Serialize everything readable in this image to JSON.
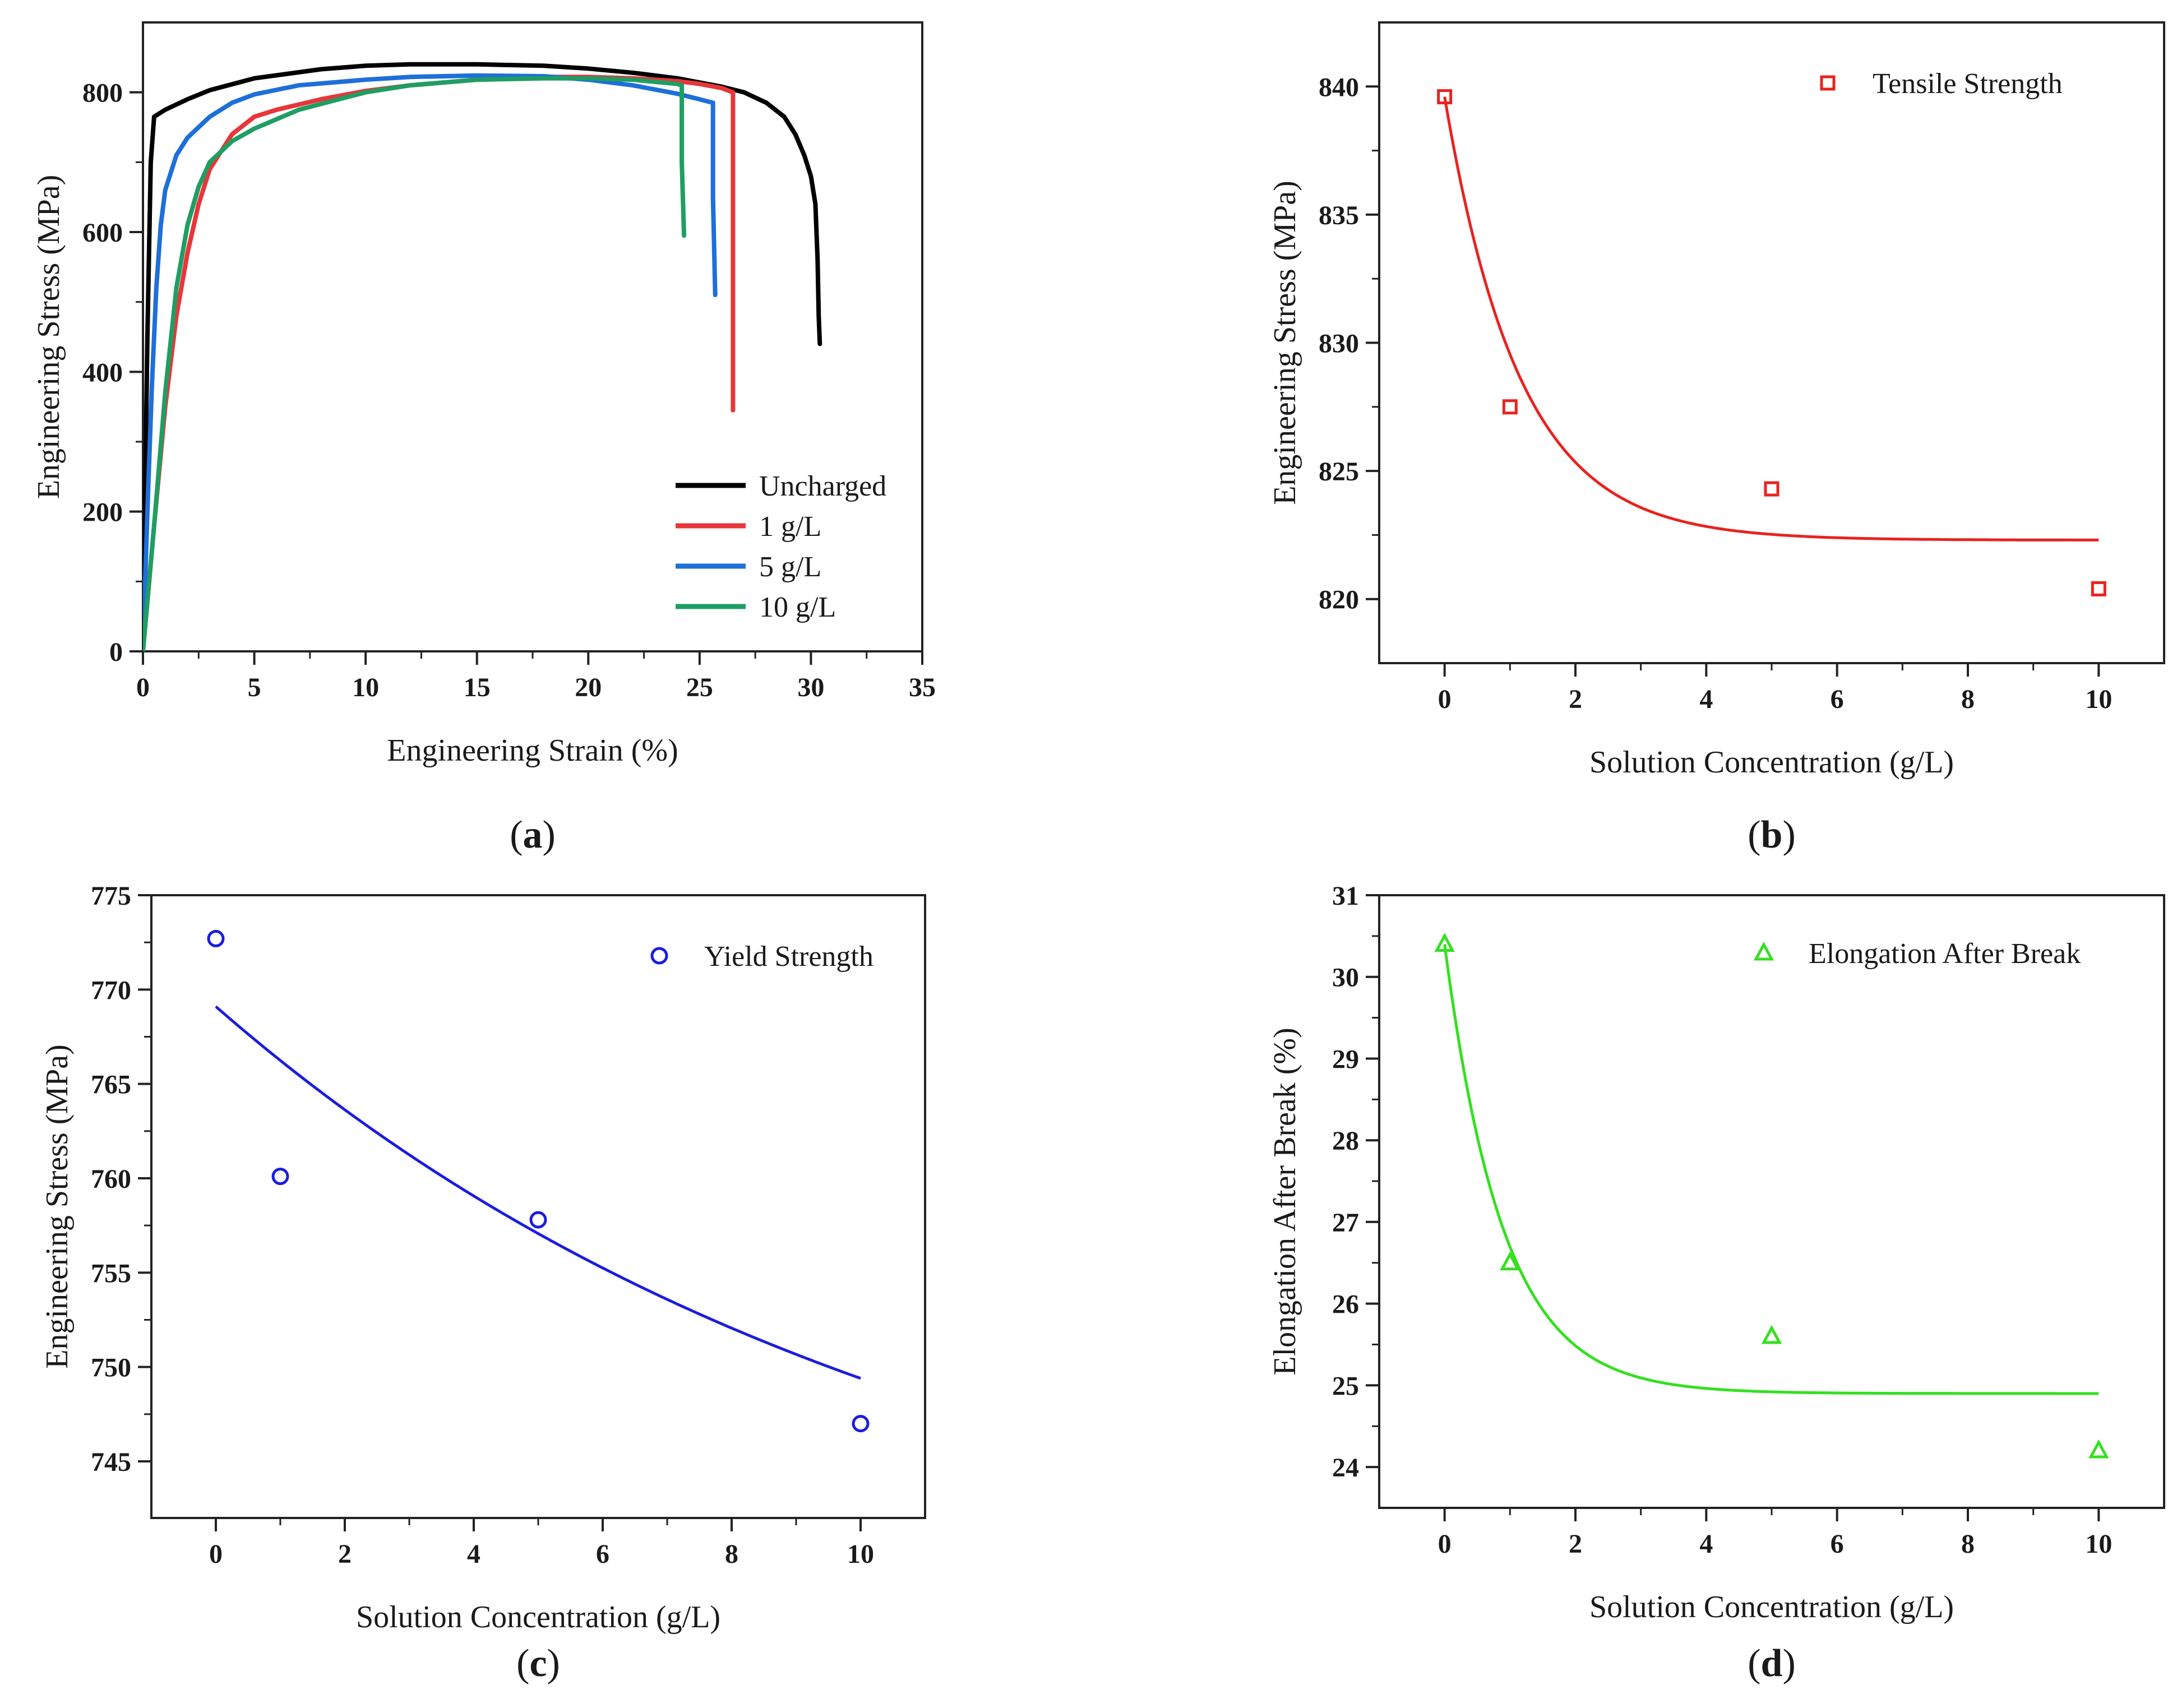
{
  "chart_data": [
    {
      "id": "a",
      "label": "a",
      "type": "line",
      "xlabel": "Engineering Strain (%)",
      "ylabel": "Engineering Stress (MPa)",
      "xlim": [
        0,
        35
      ],
      "ylim": [
        0,
        900
      ],
      "xticks": [
        0,
        5,
        10,
        15,
        20,
        25,
        30,
        35
      ],
      "yticks": [
        0,
        200,
        400,
        600,
        800
      ],
      "legend_position": "lower-right",
      "series": [
        {
          "name": "Uncharged",
          "color": "#000000",
          "x": [
            0,
            0.2,
            0.35,
            0.5,
            1,
            2,
            3,
            5,
            8,
            10,
            12,
            15,
            18,
            20,
            22,
            24,
            26,
            27,
            28,
            28.8,
            29.3,
            29.7,
            30,
            30.2,
            30.3,
            30.35,
            30.4
          ],
          "y": [
            0,
            450,
            700,
            765,
            775,
            790,
            803,
            820,
            833,
            838,
            840,
            840,
            838,
            834,
            828,
            820,
            808,
            800,
            785,
            765,
            740,
            710,
            680,
            640,
            560,
            480,
            440
          ]
        },
        {
          "name": "1 g/L",
          "color": "#e8363a",
          "x": [
            0,
            0.5,
            1,
            1.5,
            2,
            2.5,
            3,
            4,
            5,
            6,
            8,
            10,
            12,
            15,
            18,
            20,
            22,
            24,
            25,
            26,
            26.5,
            26.5,
            26.5
          ],
          "y": [
            0,
            180,
            350,
            480,
            570,
            640,
            690,
            740,
            765,
            775,
            790,
            802,
            810,
            818,
            822,
            822,
            820,
            816,
            812,
            806,
            800,
            560,
            345
          ]
        },
        {
          "name": "5 g/L",
          "color": "#1e6fd9",
          "x": [
            0,
            0.2,
            0.4,
            0.6,
            0.8,
            1,
            1.5,
            2,
            3,
            4,
            5,
            7,
            10,
            12,
            15,
            18,
            20,
            22,
            24,
            25,
            25.6,
            25.6,
            25.7
          ],
          "y": [
            0,
            200,
            380,
            520,
            610,
            660,
            710,
            735,
            765,
            785,
            797,
            810,
            818,
            822,
            824,
            823,
            818,
            810,
            798,
            790,
            785,
            650,
            510
          ]
        },
        {
          "name": "10 g/L",
          "color": "#1f9e63",
          "x": [
            0,
            0.5,
            1,
            1.5,
            2,
            2.5,
            3,
            4,
            5,
            7,
            10,
            12,
            15,
            18,
            20,
            22,
            23,
            24,
            24.2,
            24.2,
            24.3
          ],
          "y": [
            0,
            180,
            370,
            520,
            610,
            665,
            700,
            730,
            748,
            775,
            800,
            810,
            818,
            820,
            820,
            818,
            815,
            812,
            810,
            700,
            595
          ]
        }
      ]
    },
    {
      "id": "b",
      "label": "b",
      "type": "scatter",
      "xlabel": "Solution Concentration (g/L)",
      "ylabel": "Engineering Stress (MPa)",
      "xlim": [
        -1,
        11
      ],
      "ylim": [
        817.5,
        842.5
      ],
      "xticks": [
        0,
        2,
        4,
        6,
        8,
        10
      ],
      "yticks": [
        820,
        825,
        830,
        835,
        840
      ],
      "legend_position": "top-right",
      "marker": "square",
      "color": "#e8231f",
      "series": [
        {
          "name": "Tensile Strength",
          "x": [
            0,
            1,
            5,
            10
          ],
          "y": [
            839.6,
            827.5,
            824.3,
            820.4
          ]
        }
      ],
      "fit": {
        "model": "exponential decay",
        "x_range": [
          0,
          10
        ],
        "y0": 822.3,
        "amplitude": 17.3,
        "decay": 0.87
      }
    },
    {
      "id": "c",
      "label": "c",
      "type": "scatter",
      "xlabel": "Solution Concentration (g/L)",
      "ylabel": "Engineering Stress (MPa)",
      "xlim": [
        -1,
        11
      ],
      "ylim": [
        742,
        775
      ],
      "xticks": [
        0,
        2,
        4,
        6,
        8,
        10
      ],
      "yticks": [
        745,
        750,
        755,
        760,
        765,
        770,
        775
      ],
      "legend_position": "top-right",
      "marker": "circle",
      "color": "#1c1ce0",
      "series": [
        {
          "name": "Yield Strength",
          "x": [
            0,
            1,
            5,
            10
          ],
          "y": [
            772.7,
            760.1,
            757.8,
            747.0
          ]
        }
      ],
      "fit": {
        "model": "exponential decay",
        "x_range": [
          0,
          10
        ],
        "y0": 735.9,
        "amplitude": 33.2,
        "decay": 0.09
      }
    },
    {
      "id": "d",
      "label": "d",
      "type": "scatter",
      "xlabel": "Solution Concentration (g/L)",
      "ylabel": "Elongation After Break (%)",
      "xlim": [
        -1,
        11
      ],
      "ylim": [
        23.5,
        31
      ],
      "xticks": [
        0,
        2,
        4,
        6,
        8,
        10
      ],
      "yticks": [
        24,
        25,
        26,
        27,
        28,
        29,
        30,
        31
      ],
      "legend_position": "top-right",
      "marker": "triangle",
      "color": "#33e01f",
      "series": [
        {
          "name": "Elongation After Break",
          "x": [
            0,
            1,
            5,
            10
          ],
          "y": [
            30.4,
            26.5,
            25.6,
            24.2
          ]
        }
      ],
      "fit": {
        "model": "exponential decay",
        "x_range": [
          0,
          10
        ],
        "y0": 24.9,
        "amplitude": 5.5,
        "decay": 1.12
      }
    }
  ]
}
